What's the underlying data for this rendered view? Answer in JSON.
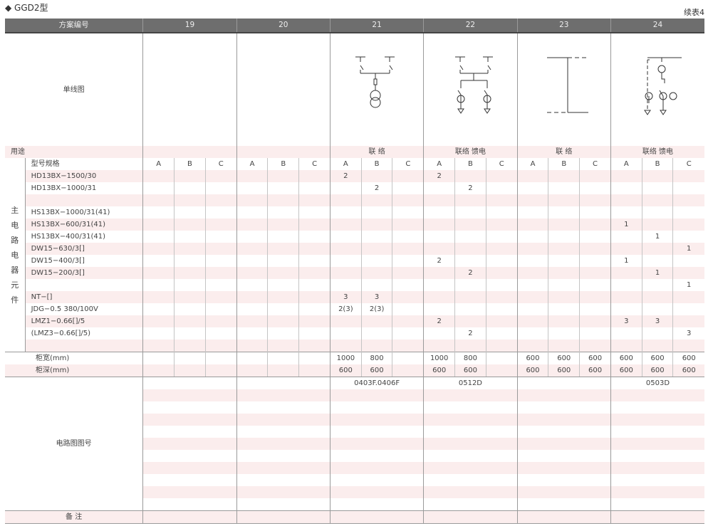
{
  "title": "◆ GGD2型",
  "continuation": "续表4",
  "header": {
    "label": "方案编号",
    "groups": [
      "19",
      "20",
      "21",
      "22",
      "23",
      "24"
    ]
  },
  "diagram_label": "单线图",
  "usage": {
    "label": "用途",
    "values": [
      "",
      "",
      "联 络",
      "联络 馈电",
      "联 络",
      "联络 馈电"
    ]
  },
  "components": {
    "section_label": "主电路电器元件",
    "spec_label": "型号规格",
    "subcolumns": [
      "A",
      "B",
      "C"
    ],
    "rows": [
      {
        "name": "HD13BX−1500/30",
        "values": [
          "",
          "",
          "",
          "",
          "",
          "",
          "2",
          "",
          "",
          "2",
          "",
          "",
          "",
          "",
          "",
          "",
          "",
          ""
        ]
      },
      {
        "name": "HD13BX−1000/31",
        "values": [
          "",
          "",
          "",
          "",
          "",
          "",
          "",
          "2",
          "",
          "",
          "2",
          "",
          "",
          "",
          "",
          "",
          "",
          ""
        ]
      },
      {
        "name": "",
        "values": [
          "",
          "",
          "",
          "",
          "",
          "",
          "",
          "",
          "",
          "",
          "",
          "",
          "",
          "",
          "",
          "",
          "",
          ""
        ]
      },
      {
        "name": "HS13BX−1000/31(41)",
        "values": [
          "",
          "",
          "",
          "",
          "",
          "",
          "",
          "",
          "",
          "",
          "",
          "",
          "",
          "",
          "",
          "",
          "",
          ""
        ]
      },
      {
        "name": "HS13BX−600/31(41)",
        "values": [
          "",
          "",
          "",
          "",
          "",
          "",
          "",
          "",
          "",
          "",
          "",
          "",
          "",
          "",
          "",
          "1",
          "",
          ""
        ]
      },
      {
        "name": "HS13BX−400/31(41)",
        "values": [
          "",
          "",
          "",
          "",
          "",
          "",
          "",
          "",
          "",
          "",
          "",
          "",
          "",
          "",
          "",
          "",
          "1",
          ""
        ]
      },
      {
        "name": "DW15−630/3[]",
        "values": [
          "",
          "",
          "",
          "",
          "",
          "",
          "",
          "",
          "",
          "",
          "",
          "",
          "",
          "",
          "",
          "",
          "",
          "1"
        ]
      },
      {
        "name": "DW15−400/3[]",
        "values": [
          "",
          "",
          "",
          "",
          "",
          "",
          "",
          "",
          "",
          "2",
          "",
          "",
          "",
          "",
          "",
          "1",
          "",
          ""
        ]
      },
      {
        "name": "DW15−200/3[]",
        "values": [
          "",
          "",
          "",
          "",
          "",
          "",
          "",
          "",
          "",
          "",
          "2",
          "",
          "",
          "",
          "",
          "",
          "1",
          ""
        ]
      },
      {
        "name": "",
        "values": [
          "",
          "",
          "",
          "",
          "",
          "",
          "",
          "",
          "",
          "",
          "",
          "",
          "",
          "",
          "",
          "",
          "",
          "1"
        ]
      },
      {
        "name": "NT−[]",
        "values": [
          "",
          "",
          "",
          "",
          "",
          "",
          "3",
          "3",
          "",
          "",
          "",
          "",
          "",
          "",
          "",
          "",
          "",
          ""
        ]
      },
      {
        "name": "JDG−0.5  380/100V",
        "values": [
          "",
          "",
          "",
          "",
          "",
          "",
          "2(3)",
          "2(3)",
          "",
          "",
          "",
          "",
          "",
          "",
          "",
          "",
          "",
          ""
        ]
      },
      {
        "name": "LMZ1−0.66[]/5",
        "values": [
          "",
          "",
          "",
          "",
          "",
          "",
          "",
          "",
          "",
          "2",
          "",
          "",
          "",
          "",
          "",
          "3",
          "3",
          ""
        ]
      },
      {
        "name": "(LMZ3−0.66[]/5)",
        "values": [
          "",
          "",
          "",
          "",
          "",
          "",
          "",
          "",
          "",
          "",
          "2",
          "",
          "",
          "",
          "",
          "",
          "",
          "3"
        ]
      },
      {
        "name": "",
        "values": [
          "",
          "",
          "",
          "",
          "",
          "",
          "",
          "",
          "",
          "",
          "",
          "",
          "",
          "",
          "",
          "",
          "",
          ""
        ]
      }
    ]
  },
  "width": {
    "label": "柜宽(mm)",
    "values": [
      "",
      "",
      "",
      "",
      "",
      "",
      "1000",
      "800",
      "",
      "1000",
      "800",
      "",
      "600",
      "600",
      "600",
      "600",
      "600",
      "600"
    ]
  },
  "depth": {
    "label": "柜深(mm)",
    "values": [
      "",
      "",
      "",
      "",
      "",
      "",
      "600",
      "600",
      "",
      "600",
      "600",
      "",
      "600",
      "600",
      "600",
      "600",
      "600",
      "600"
    ]
  },
  "circuit": {
    "label": "电路图图号",
    "values": [
      "",
      "",
      "0403F.0406F",
      "0512D",
      "",
      "0503D"
    ]
  },
  "remarks": {
    "label": "备 注"
  },
  "colors": {
    "header_bg": "#6e6e6e",
    "stripe": "#fbeded",
    "grid": "#9a9a9a"
  }
}
